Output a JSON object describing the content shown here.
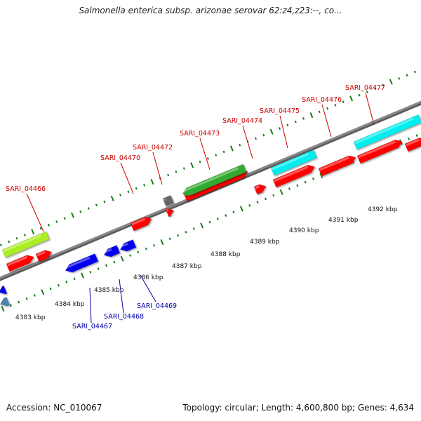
{
  "title": "Salmonella enterica subsp. arizonae serovar 62:z4,z23:--, co...",
  "footer": {
    "accession": "Accession: NC_010067",
    "stats": "Topology: circular; Length: 4,600,800 bp; Genes: 4,634"
  },
  "colors": {
    "forward_label": "#cc0000",
    "reverse_label": "#0000aa",
    "red_gene": "#ff0000",
    "blue_gene": "#0000ee",
    "cyan_gene": "#00eeee",
    "green_gene": "#33aa33",
    "lime_gene": "#aaee22",
    "gray_gene": "#666666",
    "steelblue_gene": "#4682b4",
    "backbone": "#8a8a8a",
    "tick": "#1a7a1a"
  },
  "forward_labels": [
    "SARI_04466",
    "SARI_04470",
    "SARI_04472",
    "SARI_04473",
    "SARI_04474",
    "SARI_04475",
    "SARI_04476",
    "SARI_04477"
  ],
  "reverse_labels": [
    "SARI_04467",
    "SARI_04468",
    "SARI_04469"
  ],
  "scale_labels": [
    "4383 kbp",
    "4384 kbp",
    "4385 kbp",
    "4386 kbp",
    "4387 kbp",
    "4388 kbp",
    "4389 kbp",
    "4390 kbp",
    "4391 kbp",
    "4392 kbp"
  ]
}
